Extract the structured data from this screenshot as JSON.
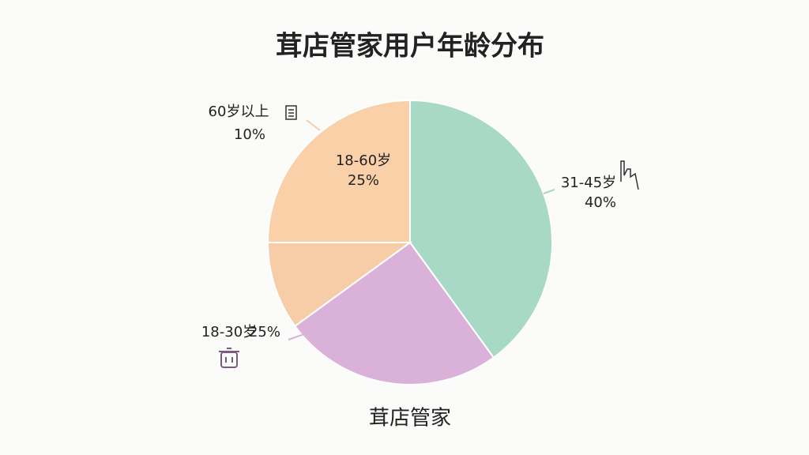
{
  "chart_data": {
    "type": "pie",
    "title": "茸店管家用户年龄分布",
    "subtitle": "茸店管家",
    "categories": [
      "31-45岁",
      "18-30岁",
      "60岁以上",
      "18-60岁"
    ],
    "values": [
      40,
      25,
      10,
      25
    ],
    "value_labels": [
      "40%",
      "25%",
      "10%",
      "25%"
    ],
    "colors": [
      "#a8d8c6",
      "#dab1d9",
      "#f7cda8",
      "#f9d0a8"
    ]
  }
}
